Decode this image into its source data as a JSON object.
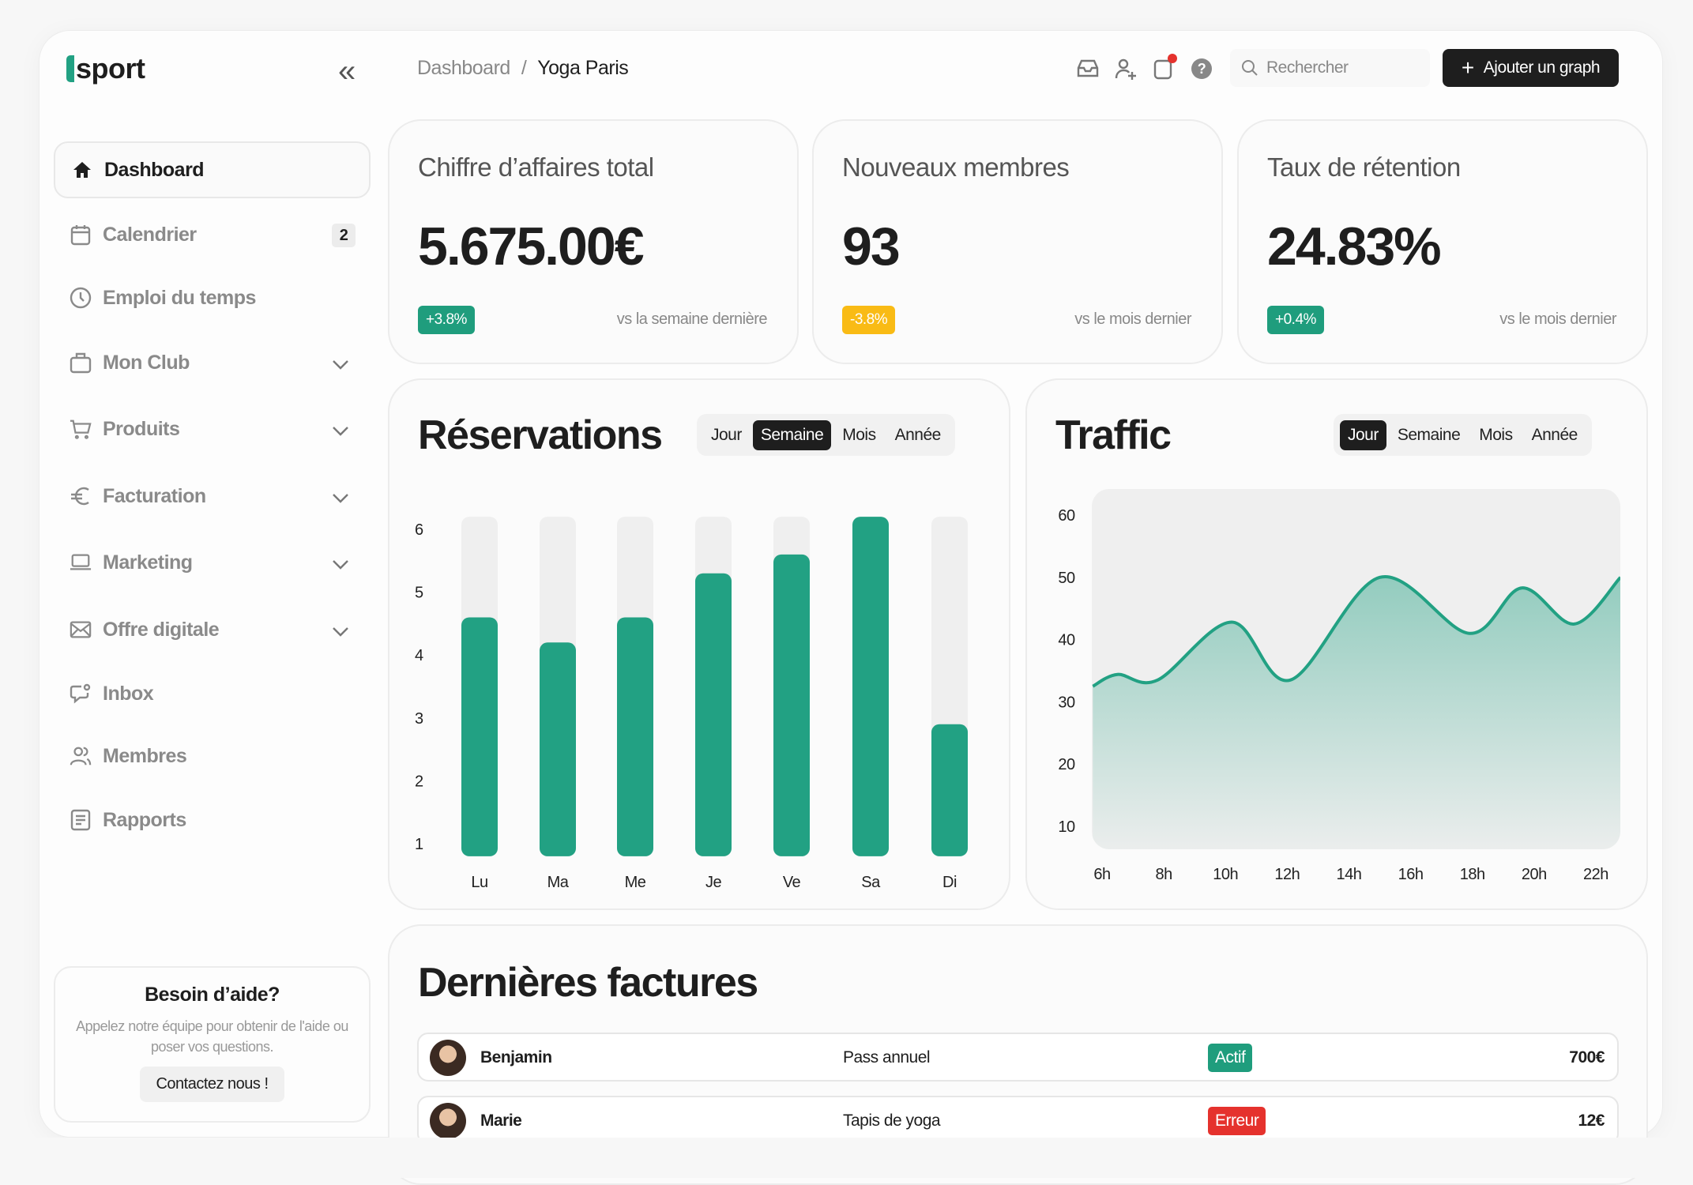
{
  "brand": {
    "name": "sport",
    "accent": "#22a183"
  },
  "breadcrumb": [
    "Dashboard",
    "Yoga Paris"
  ],
  "header": {
    "search_placeholder": "Rechercher",
    "add_button": "Ajouter un graph",
    "icons": [
      "inbox-icon",
      "add-user-icon",
      "notification-icon",
      "help-icon"
    ]
  },
  "sidebar": {
    "items": [
      {
        "label": "Dashboard",
        "icon": "home-icon",
        "active": true
      },
      {
        "label": "Calendrier",
        "icon": "calendar-icon",
        "badge": "2"
      },
      {
        "label": "Emploi du temps",
        "icon": "clock-icon"
      },
      {
        "label": "Mon Club",
        "icon": "bag-icon",
        "expandable": true
      },
      {
        "label": "Produits",
        "icon": "cart-icon",
        "expandable": true
      },
      {
        "label": "Facturation",
        "icon": "euro-icon",
        "expandable": true
      },
      {
        "label": "Marketing",
        "icon": "laptop-icon",
        "expandable": true
      },
      {
        "label": "Offre digitale",
        "icon": "mail-icon",
        "expandable": true
      },
      {
        "label": "Inbox",
        "icon": "chat-icon"
      },
      {
        "label": "Membres",
        "icon": "users-icon"
      },
      {
        "label": "Rapports",
        "icon": "report-icon"
      }
    ],
    "help": {
      "title": "Besoin d’aide?",
      "text": "Appelez notre équipe pour obtenir de l'aide ou poser vos questions.",
      "button": "Contactez nous !"
    }
  },
  "stats": [
    {
      "title": "Chiffre d’affaires total",
      "value": "5.675.00€",
      "change": "+3.8%",
      "change_color": "#1f9d7d",
      "footer": "vs la semaine dernière"
    },
    {
      "title": "Nouveaux membres",
      "value": "93",
      "change": "-3.8%",
      "change_color": "#f9bb15",
      "footer": "vs le mois dernier"
    },
    {
      "title": "Taux de rétention",
      "value": "24.83%",
      "change": "+0.4%",
      "change_color": "#1f9d7d",
      "footer": "vs le mois dernier"
    }
  ],
  "periods": [
    "Jour",
    "Semaine",
    "Mois",
    "Année"
  ],
  "chart_data": [
    {
      "type": "bar",
      "title": "Réservations",
      "active_period": "Semaine",
      "categories": [
        "Lu",
        "Ma",
        "Me",
        "Je",
        "Ve",
        "Sa",
        "Di"
      ],
      "values": [
        4.6,
        4.2,
        4.6,
        5.3,
        5.6,
        6.2,
        2.9
      ],
      "yticks": [
        1,
        2,
        3,
        4,
        5,
        6
      ],
      "ylim": [
        0.8,
        6.2
      ],
      "color": "#22a183"
    },
    {
      "type": "area",
      "title": "Traffic",
      "active_period": "Jour",
      "xticks": [
        "6h",
        "8h",
        "10h",
        "12h",
        "14h",
        "16h",
        "18h",
        "20h",
        "22h"
      ],
      "yticks": [
        10,
        20,
        30,
        40,
        50,
        60
      ],
      "x": [
        5.7,
        6.5,
        7.8,
        10.2,
        12.1,
        15.0,
        17.9,
        19.6,
        21.3,
        22.8
      ],
      "y": [
        32.5,
        34.4,
        33.5,
        42.8,
        33.5,
        50,
        41,
        48.3,
        42.5,
        50
      ],
      "ylim": [
        6,
        64
      ],
      "color": "#22a183"
    }
  ],
  "invoices": {
    "title": "Dernières factures",
    "rows": [
      {
        "name": "Benjamin",
        "product": "Pass annuel",
        "status": "Actif",
        "status_color": "#1f9d7d",
        "amount": "700€"
      },
      {
        "name": "Marie",
        "product": "Tapis de yoga",
        "status": "Erreur",
        "status_color": "#e5322d",
        "amount": "12€"
      }
    ]
  }
}
